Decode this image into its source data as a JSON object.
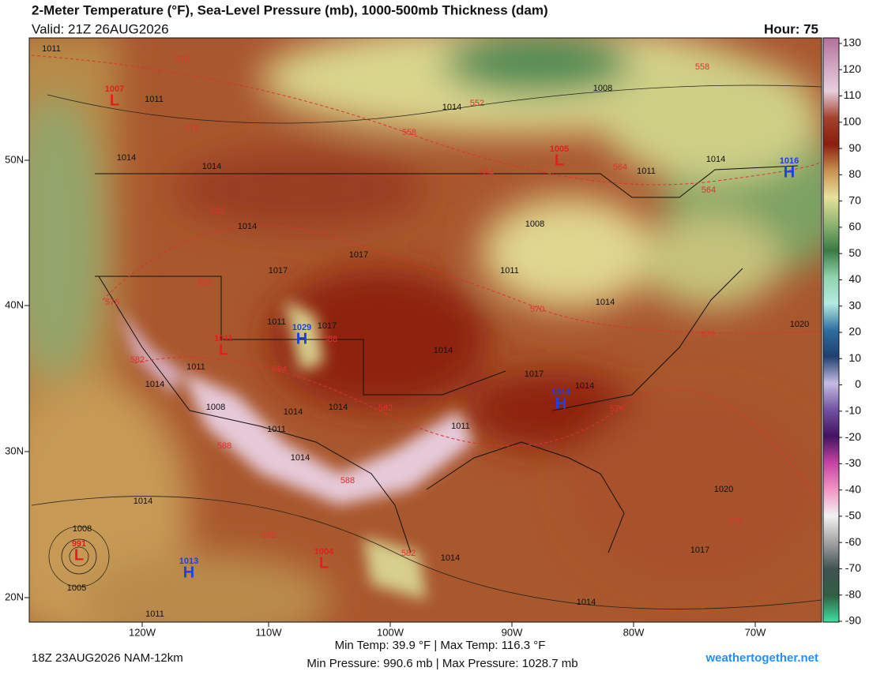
{
  "header": {
    "title": "2-Meter Temperature (°F), Sea-Level Pressure (mb), 1000-500mb Thickness (dam)",
    "valid": "Valid: 21Z 26AUG2026",
    "hour": "Hour: 75"
  },
  "colorbar": {
    "ticks": [
      130,
      120,
      110,
      100,
      90,
      80,
      70,
      60,
      50,
      40,
      30,
      20,
      10,
      0,
      -10,
      -20,
      -30,
      -40,
      -50,
      -60,
      -70,
      -80,
      -90
    ],
    "colors": [
      "#b36f9a",
      "#cfa3bf",
      "#e6cfdc",
      "#a3432e",
      "#8a1e0e",
      "#c8914f",
      "#e8e29a",
      "#8fb571",
      "#3a7b43",
      "#8fd3ab",
      "#b4ebe2",
      "#2f6fa0",
      "#1f3f70",
      "#c4bce3",
      "#7353a3",
      "#431263",
      "#c544a3",
      "#f294c2",
      "#f2f2f2",
      "#a3a3a3",
      "#405252",
      "#2f6042",
      "#3ee0a0"
    ]
  },
  "longitudes": [
    "120W",
    "110W",
    "100W",
    "90W",
    "80W",
    "70W"
  ],
  "latitudes": [
    "50N",
    "40N",
    "30N",
    "20N"
  ],
  "highs": [
    {
      "letter": "H",
      "value": 1016
    },
    {
      "letter": "H",
      "value": 1029
    },
    {
      "letter": "H",
      "value": 1014
    },
    {
      "letter": "H",
      "value": 1013
    }
  ],
  "lows": [
    {
      "letter": "L",
      "value": 1007
    },
    {
      "letter": "L",
      "value": 1005
    },
    {
      "letter": "L",
      "value": 1011
    },
    {
      "letter": "L",
      "value": 991
    },
    {
      "letter": "L",
      "value": 1004
    }
  ],
  "pressure_labels": [
    1011,
    1011,
    1014,
    1014,
    1014,
    1008,
    1014,
    1011,
    1014,
    1008,
    1017,
    1017,
    1011,
    1014,
    1020,
    1014,
    1011,
    1014,
    1008,
    1014,
    1014,
    1011,
    1011,
    1014,
    1014,
    1008,
    1005,
    1011,
    1014,
    1014,
    1020,
    1017,
    1017,
    1014,
    1017,
    1011
  ],
  "thickness_labels": [
    570,
    576,
    552,
    558,
    564,
    564,
    564,
    558,
    582,
    582,
    576,
    582,
    570,
    570,
    588,
    594,
    582,
    576,
    588,
    588,
    582,
    582,
    576
  ],
  "footer": {
    "run": "18Z 23AUG2026 NAM-12km",
    "temps": "Min Temp:  39.9 °F | Max Temp: 116.3 °F",
    "pressures": "Min Pressure: 990.6 mb | Max Pressure: 1028.7 mb",
    "site": "weathertogether.net"
  }
}
